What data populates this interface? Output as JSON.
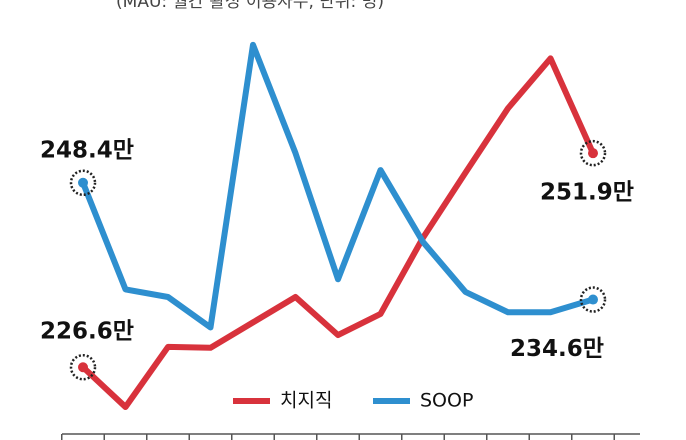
{
  "chart_data": {
    "type": "line",
    "subtitle": "(MAU: 월간 활성 이용자수, 단위: 명)",
    "categories": [
      null,
      null,
      null,
      null,
      null,
      null,
      null,
      null,
      null,
      null,
      null,
      null,
      null
    ],
    "series": [
      {
        "name": "치지직",
        "color": "#d8323c",
        "values": [
          226.6,
          221.9,
          229.0,
          228.9,
          231.9,
          234.9,
          230.4,
          232.9,
          241.9,
          249.6,
          257.2,
          263.1,
          251.9
        ],
        "value_labels": [
          "226.6만",
          null,
          null,
          null,
          null,
          null,
          null,
          null,
          null,
          null,
          null,
          null,
          "251.9만"
        ]
      },
      {
        "name": "SOOP",
        "color": "#2e8fcf",
        "values": [
          248.4,
          235.8,
          234.9,
          231.3,
          264.7,
          251.9,
          237.0,
          249.9,
          241.4,
          235.5,
          233.1,
          233.1,
          234.6
        ],
        "value_labels": [
          "248.4만",
          null,
          null,
          null,
          null,
          null,
          null,
          null,
          null,
          null,
          null,
          null,
          "234.6만"
        ]
      }
    ],
    "ylim": [
      218,
      270
    ],
    "legend": "bottom"
  }
}
